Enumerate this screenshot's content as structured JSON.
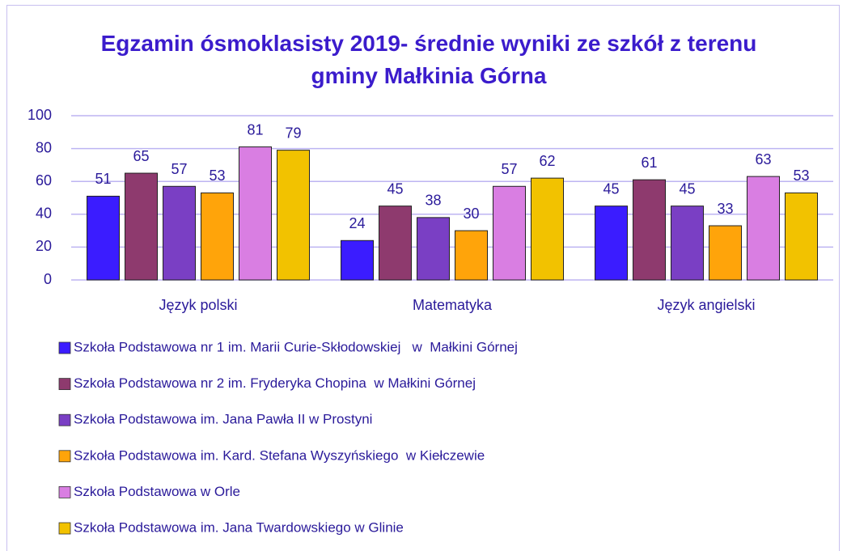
{
  "chart_data": {
    "type": "bar",
    "title": "Egzamin ósmoklasisty 2019- średnie wyniki ze szkół z terenu gminy Małkinia Górna",
    "categories": [
      "Język polski",
      "Matematyka",
      "Język angielski"
    ],
    "series": [
      {
        "name": "Szkoła Podstawowa nr 1 im. Marii Curie-Skłodowskiej   w  Małkini Górnej",
        "color": "#3b1cff",
        "values": [
          51,
          24,
          45
        ]
      },
      {
        "name": "Szkoła Podstawowa nr 2 im. Fryderyka Chopina  w Małkini Górnej",
        "color": "#8e3a6e",
        "values": [
          65,
          45,
          61
        ]
      },
      {
        "name": "Szkoła Podstawowa im. Jana Pawła II w Prostyni",
        "color": "#7a3fc4",
        "values": [
          57,
          38,
          45
        ]
      },
      {
        "name": "Szkoła Podstawowa im. Kard. Stefana Wyszyńskiego  w Kiełczewie",
        "color": "#ffa40a",
        "values": [
          53,
          30,
          33
        ]
      },
      {
        "name": "Szkoła Podstawowa w Orle",
        "color": "#d97ee2",
        "values": [
          81,
          57,
          63
        ]
      },
      {
        "name": "Szkoła Podstawowa im. Jana Twardowskiego w Glinie",
        "color": "#f2c200",
        "values": [
          79,
          62,
          53
        ]
      }
    ],
    "ylim": [
      0,
      100
    ],
    "yticks": [
      0,
      20,
      40,
      60,
      80,
      100
    ],
    "grid": true
  }
}
